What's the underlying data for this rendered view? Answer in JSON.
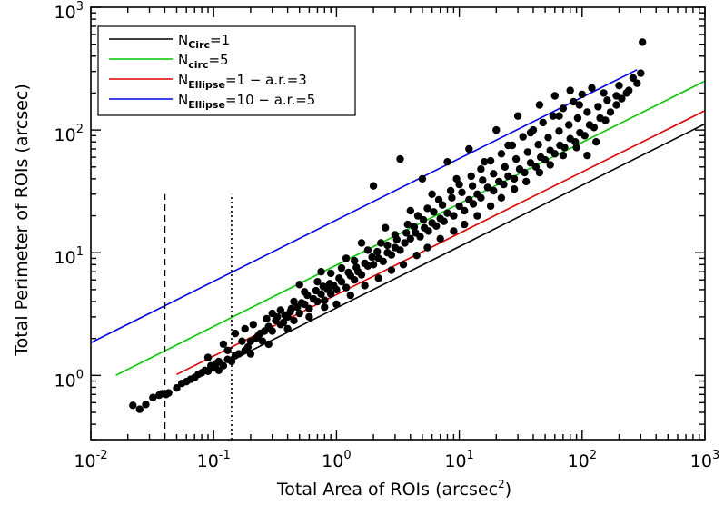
{
  "chart_data": {
    "type": "scatter",
    "xscale": "log",
    "yscale": "log",
    "xlim": [
      0.01,
      1000
    ],
    "ylim": [
      0.3,
      1000
    ],
    "xlabel": "Total Area of ROIs (arcsec²)",
    "xlabel_main": "Total Area of ROIs (arcsec",
    "xlabel_sup": "2",
    "xlabel_end": ")",
    "ylabel": "Total Perimeter of ROIs (arcsec)",
    "x_ticks": [
      {
        "value": 0.01,
        "base": "10",
        "exp": "-2"
      },
      {
        "value": 0.1,
        "base": "10",
        "exp": "-1"
      },
      {
        "value": 1,
        "base": "10",
        "exp": "0"
      },
      {
        "value": 10,
        "base": "10",
        "exp": "1"
      },
      {
        "value": 100,
        "base": "10",
        "exp": "2"
      },
      {
        "value": 1000,
        "base": "10",
        "exp": "3"
      }
    ],
    "y_ticks": [
      {
        "value": 1,
        "base": "10",
        "exp": "0"
      },
      {
        "value": 10,
        "base": "10",
        "exp": "1"
      },
      {
        "value": 100,
        "base": "10",
        "exp": "2"
      },
      {
        "value": 1000,
        "base": "10",
        "exp": "3"
      }
    ],
    "legend_position": "top-left",
    "series": [
      {
        "name": "N_Circ=1",
        "label_main": "N",
        "label_sub": "Circ",
        "label_rest": "=1",
        "color": "#000000",
        "kind": "line",
        "x_range": [
          0.13,
          1000
        ],
        "coef": 3.545,
        "exponent": 0.5
      },
      {
        "name": "N_circ=5",
        "label_main": "N",
        "label_sub": "circ",
        "label_rest": "=5",
        "color": "#00c800",
        "kind": "line",
        "x_range": [
          0.016,
          1000
        ],
        "coef": 7.93,
        "exponent": 0.5
      },
      {
        "name": "N_Ellipse=1 - a.r.=3",
        "label_main": "N",
        "label_sub": "Ellipse",
        "label_rest": "=1 − a.r.=3",
        "color": "#e00000",
        "kind": "line",
        "x_range": [
          0.05,
          1000
        ],
        "coef": 4.55,
        "exponent": 0.5
      },
      {
        "name": "N_Ellipse=10 - a.r.=5",
        "label_main": "N",
        "label_sub": "Ellipse",
        "label_rest": "=10 − a.r.=5",
        "color": "#0000e0",
        "kind": "line",
        "x_range": [
          0.01,
          280
        ],
        "coef": 18.5,
        "exponent": 0.5
      }
    ],
    "vlines": [
      {
        "x": 0.04,
        "style": "dashed",
        "y_top": 30
      },
      {
        "x": 0.14,
        "style": "dotted",
        "y_top": 30
      }
    ],
    "scatter_points": [
      [
        0.022,
        0.57
      ],
      [
        0.025,
        0.53
      ],
      [
        0.028,
        0.58
      ],
      [
        0.032,
        0.66
      ],
      [
        0.036,
        0.69
      ],
      [
        0.038,
        0.71
      ],
      [
        0.041,
        0.7
      ],
      [
        0.043,
        0.72
      ],
      [
        0.05,
        0.79
      ],
      [
        0.055,
        0.86
      ],
      [
        0.06,
        0.89
      ],
      [
        0.065,
        0.93
      ],
      [
        0.07,
        0.96
      ],
      [
        0.075,
        1.02
      ],
      [
        0.08,
        1.05
      ],
      [
        0.085,
        1.1
      ],
      [
        0.09,
        1.08
      ],
      [
        0.095,
        1.2
      ],
      [
        0.1,
        1.15
      ],
      [
        0.105,
        1.25
      ],
      [
        0.11,
        1.3
      ],
      [
        0.12,
        1.2
      ],
      [
        0.13,
        1.35
      ],
      [
        0.14,
        1.3
      ],
      [
        0.15,
        1.45
      ],
      [
        0.16,
        1.5
      ],
      [
        0.18,
        1.6
      ],
      [
        0.19,
        1.7
      ],
      [
        0.2,
        1.9
      ],
      [
        0.22,
        2.0
      ],
      [
        0.24,
        2.2
      ],
      [
        0.26,
        2.3
      ],
      [
        0.28,
        2.5
      ],
      [
        0.3,
        2.3
      ],
      [
        0.32,
        2.8
      ],
      [
        0.35,
        2.6
      ],
      [
        0.38,
        3.1
      ],
      [
        0.4,
        3.0
      ],
      [
        0.42,
        3.3
      ],
      [
        0.45,
        2.8
      ],
      [
        0.48,
        3.6
      ],
      [
        0.5,
        3.2
      ],
      [
        0.55,
        3.8
      ],
      [
        0.6,
        3.5
      ],
      [
        0.65,
        4.2
      ],
      [
        0.7,
        4.0
      ],
      [
        0.75,
        4.6
      ],
      [
        0.8,
        4.1
      ],
      [
        0.85,
        5.0
      ],
      [
        0.9,
        4.6
      ],
      [
        0.95,
        5.4
      ],
      [
        1.0,
        5.0
      ],
      [
        1.1,
        5.8
      ],
      [
        1.2,
        5.2
      ],
      [
        1.3,
        6.5
      ],
      [
        1.4,
        6.0
      ],
      [
        1.5,
        7.0
      ],
      [
        1.6,
        6.6
      ],
      [
        1.8,
        7.8
      ],
      [
        2.0,
        8.0
      ],
      [
        2.2,
        9.0
      ],
      [
        2.4,
        8.5
      ],
      [
        2.6,
        10.0
      ],
      [
        2.8,
        9.6
      ],
      [
        3.0,
        11.0
      ],
      [
        3.3,
        10.5
      ],
      [
        3.6,
        12.0
      ],
      [
        4.0,
        13.0
      ],
      [
        4.4,
        14.5
      ],
      [
        4.8,
        13.5
      ],
      [
        5.2,
        16.0
      ],
      [
        5.6,
        15.0
      ],
      [
        6.0,
        17.5
      ],
      [
        6.5,
        16.5
      ],
      [
        7.0,
        19.0
      ],
      [
        7.5,
        18.0
      ],
      [
        8.0,
        21.0
      ],
      [
        9.0,
        20.0
      ],
      [
        10.0,
        24.0
      ],
      [
        11.0,
        22.0
      ],
      [
        12.0,
        27.0
      ],
      [
        13.0,
        25.0
      ],
      [
        14.0,
        30.0
      ],
      [
        15.0,
        28.0
      ],
      [
        17.0,
        34.0
      ],
      [
        19.0,
        32.0
      ],
      [
        21.0,
        38.0
      ],
      [
        23.0,
        36.0
      ],
      [
        25.0,
        42.0
      ],
      [
        28.0,
        40.0
      ],
      [
        31.0,
        48.0
      ],
      [
        34.0,
        45.0
      ],
      [
        38.0,
        54.0
      ],
      [
        42.0,
        50.0
      ],
      [
        46.0,
        60.0
      ],
      [
        50.0,
        57.0
      ],
      [
        55.0,
        68.0
      ],
      [
        60.0,
        64.0
      ],
      [
        66.0,
        75.0
      ],
      [
        72.0,
        72.0
      ],
      [
        80.0,
        85.0
      ],
      [
        88.0,
        80.0
      ],
      [
        96.0,
        95.0
      ],
      [
        105.0,
        90.0
      ],
      [
        115.0,
        110.0
      ],
      [
        125.0,
        105.0
      ],
      [
        140.0,
        125.0
      ],
      [
        155.0,
        120.0
      ],
      [
        170.0,
        140.0
      ],
      [
        190.0,
        160.0
      ],
      [
        210.0,
        180.0
      ],
      [
        240.0,
        210.0
      ],
      [
        280.0,
        240.0
      ],
      [
        300.0,
        290.0
      ],
      [
        310.0,
        520.0
      ],
      [
        0.12,
        1.8
      ],
      [
        0.15,
        2.2
      ],
      [
        0.18,
        2.4
      ],
      [
        0.2,
        1.5
      ],
      [
        0.25,
        1.9
      ],
      [
        0.3,
        3.2
      ],
      [
        0.35,
        3.4
      ],
      [
        0.45,
        4.0
      ],
      [
        0.55,
        4.8
      ],
      [
        0.7,
        5.8
      ],
      [
        0.9,
        6.8
      ],
      [
        1.1,
        7.5
      ],
      [
        1.4,
        8.6
      ],
      [
        1.8,
        10.5
      ],
      [
        2.3,
        12.0
      ],
      [
        3.0,
        14.0
      ],
      [
        3.8,
        17.0
      ],
      [
        4.6,
        20.0
      ],
      [
        5.5,
        23.0
      ],
      [
        6.8,
        27.0
      ],
      [
        8.5,
        32.0
      ],
      [
        10.0,
        36.0
      ],
      [
        12.5,
        42.0
      ],
      [
        15.0,
        48.0
      ],
      [
        18.0,
        56.0
      ],
      [
        22.0,
        64.0
      ],
      [
        27.0,
        75.0
      ],
      [
        33.0,
        88.0
      ],
      [
        40.0,
        100.0
      ],
      [
        48.0,
        115.0
      ],
      [
        58.0,
        130.0
      ],
      [
        70.0,
        150.0
      ],
      [
        85.0,
        170.0
      ],
      [
        100.0,
        195.0
      ],
      [
        120.0,
        220.0
      ],
      [
        0.28,
        1.8
      ],
      [
        0.4,
        2.4
      ],
      [
        0.6,
        3.0
      ],
      [
        0.8,
        3.6
      ],
      [
        1.0,
        3.8
      ],
      [
        1.3,
        4.5
      ],
      [
        1.7,
        5.4
      ],
      [
        2.2,
        6.2
      ],
      [
        2.8,
        7.2
      ],
      [
        3.5,
        8.0
      ],
      [
        4.5,
        9.5
      ],
      [
        5.5,
        11.0
      ],
      [
        7.0,
        13.0
      ],
      [
        9.0,
        15.0
      ],
      [
        11.0,
        17.0
      ],
      [
        14.0,
        20.0
      ],
      [
        18.0,
        24.0
      ],
      [
        22.0,
        28.0
      ],
      [
        28.0,
        33.0
      ],
      [
        35.0,
        38.0
      ],
      [
        45.0,
        45.0
      ],
      [
        55.0,
        52.0
      ],
      [
        70.0,
        62.0
      ],
      [
        90.0,
        72.0
      ],
      [
        110.0,
        62.0
      ],
      [
        130.0,
        80.0
      ],
      [
        3.3,
        58.0
      ],
      [
        2.0,
        35.0
      ],
      [
        5.0,
        40.0
      ],
      [
        8.0,
        55.0
      ],
      [
        12.0,
        70.0
      ],
      [
        20.0,
        100.0
      ],
      [
        30.0,
        130.0
      ],
      [
        45.0,
        160.0
      ],
      [
        60.0,
        190.0
      ],
      [
        80.0,
        210.0
      ],
      [
        0.5,
        5.5
      ],
      [
        0.75,
        7.0
      ],
      [
        1.2,
        9.0
      ],
      [
        1.6,
        12.0
      ],
      [
        2.5,
        16.0
      ],
      [
        4.0,
        22.0
      ],
      [
        6.0,
        30.0
      ],
      [
        9.5,
        40.0
      ],
      [
        16.0,
        55.0
      ],
      [
        25.0,
        75.0
      ],
      [
        38.0,
        95.0
      ],
      [
        65.0,
        130.0
      ],
      [
        95.0,
        160.0
      ],
      [
        150.0,
        200.0
      ],
      [
        200.0,
        230.0
      ],
      [
        0.09,
        1.4
      ],
      [
        0.11,
        1.1
      ],
      [
        0.13,
        1.6
      ],
      [
        0.17,
        1.9
      ],
      [
        0.21,
        2.6
      ],
      [
        0.23,
        2.1
      ],
      [
        0.27,
        2.9
      ],
      [
        0.33,
        3.0
      ],
      [
        0.37,
        2.7
      ],
      [
        0.43,
        3.5
      ],
      [
        0.52,
        3.9
      ],
      [
        0.58,
        4.5
      ],
      [
        0.68,
        4.9
      ],
      [
        0.78,
        5.3
      ],
      [
        0.88,
        5.6
      ],
      [
        1.05,
        6.2
      ],
      [
        1.25,
        6.9
      ],
      [
        1.45,
        7.6
      ],
      [
        1.7,
        8.2
      ],
      [
        1.95,
        9.2
      ],
      [
        2.15,
        10.2
      ],
      [
        2.6,
        11.5
      ],
      [
        3.1,
        12.8
      ],
      [
        3.7,
        14.5
      ],
      [
        4.3,
        16.2
      ],
      [
        5.1,
        18.5
      ],
      [
        6.2,
        21.5
      ],
      [
        7.3,
        24.5
      ],
      [
        8.7,
        28.0
      ],
      [
        10.5,
        31.0
      ],
      [
        12.8,
        35.0
      ],
      [
        15.5,
        39.0
      ],
      [
        19.0,
        44.0
      ],
      [
        23.5,
        50.0
      ],
      [
        29.0,
        58.0
      ],
      [
        36.0,
        66.0
      ],
      [
        44.0,
        76.0
      ],
      [
        53.0,
        87.0
      ],
      [
        65.0,
        98.0
      ],
      [
        78.0,
        110.0
      ],
      [
        92.0,
        125.0
      ],
      [
        110.0,
        140.0
      ],
      [
        135.0,
        155.0
      ],
      [
        160.0,
        175.0
      ],
      [
        190.0,
        190.0
      ],
      [
        230.0,
        200.0
      ],
      [
        260.0,
        265.0
      ]
    ]
  }
}
